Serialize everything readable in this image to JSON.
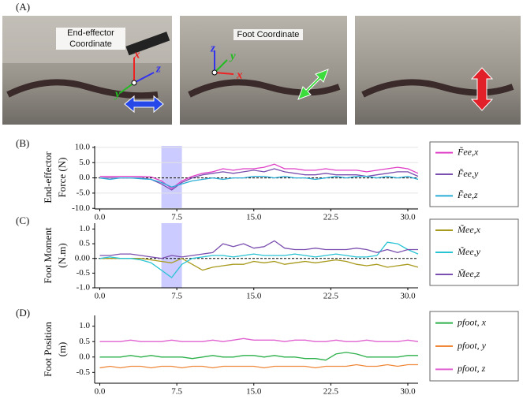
{
  "figure": {
    "label": "(A)",
    "photos": [
      {
        "caption": [
          "End-effector",
          "Coordinate"
        ],
        "axes": [
          "x",
          "z",
          "y"
        ]
      },
      {
        "caption": [
          "Foot Coordinate"
        ],
        "axes": [
          "z",
          "y",
          "x"
        ]
      },
      {
        "caption": [],
        "axes": []
      }
    ]
  },
  "chart_data": [
    {
      "type": "line",
      "panel": "(B)",
      "ylabel": [
        "End-effector",
        "Force (N)"
      ],
      "x": [
        0,
        1,
        2,
        3,
        4,
        5,
        6,
        7,
        8,
        9,
        10,
        11,
        12,
        13,
        14,
        15,
        16,
        17,
        18,
        19,
        20,
        21,
        22,
        23,
        24,
        25,
        26,
        27,
        28,
        29,
        30,
        31
      ],
      "series": [
        {
          "name": "F̃ee,x",
          "color": "#e040c8",
          "values": [
            0.5,
            0.5,
            0.5,
            0.5,
            0.5,
            0.3,
            -1,
            -3.5,
            -1,
            0.5,
            1.5,
            2,
            3,
            2.5,
            3,
            3,
            3.5,
            4.5,
            3,
            3,
            2.5,
            2.5,
            3,
            2.5,
            2.5,
            2.5,
            2,
            2.5,
            3,
            3.5,
            3,
            1.5
          ]
        },
        {
          "name": "F̃ee,y",
          "color": "#7b4fb0",
          "values": [
            0,
            0,
            0,
            0,
            0,
            -0.5,
            -2,
            -4,
            -1.5,
            0,
            1,
            1.5,
            2,
            1.5,
            2,
            2.5,
            2,
            3,
            2,
            1.5,
            1,
            1,
            1.5,
            1,
            1,
            1,
            0.5,
            1,
            1.5,
            2,
            2,
            0.5
          ]
        },
        {
          "name": "F̃ee,z",
          "color": "#2aaed8",
          "values": [
            0,
            -0.5,
            0,
            0,
            -0.3,
            -0.5,
            -1.5,
            -3,
            -2,
            -1,
            -0.5,
            0,
            -0.5,
            0,
            0,
            0.5,
            0.5,
            0,
            0.5,
            0,
            0,
            -0.5,
            0,
            0.5,
            0,
            0.5,
            0.5,
            0,
            0.5,
            0,
            0.5,
            -0.5
          ]
        }
      ],
      "xlim": [
        -0.5,
        31
      ],
      "xticks": [
        {
          "value": 0,
          "label": "0.0"
        },
        7.5,
        {
          "value": 15,
          "label": "15.0"
        },
        22.5,
        {
          "value": 30,
          "label": "30.0"
        }
      ],
      "ylim": [
        -10.2,
        10.5
      ],
      "yticks": [
        {
          "value": -10,
          "label": "-10.0"
        },
        {
          "value": -5,
          "label": "-5.0"
        },
        {
          "value": 0,
          "label": "0.0"
        },
        {
          "value": 5,
          "label": "5.0"
        },
        {
          "value": 10,
          "label": "10.0"
        }
      ],
      "grid": true,
      "zero_line": true,
      "shade_x": [
        6,
        8
      ]
    },
    {
      "type": "line",
      "panel": "(C)",
      "ylabel": [
        "Foot Moment",
        "(N.m)"
      ],
      "x": [
        0,
        1,
        2,
        3,
        4,
        5,
        6,
        7,
        8,
        9,
        10,
        11,
        12,
        13,
        14,
        15,
        16,
        17,
        18,
        19,
        20,
        21,
        22,
        23,
        24,
        25,
        26,
        27,
        28,
        29,
        30,
        31
      ],
      "series": [
        {
          "name": "M̃ee,x",
          "color": "#a89a1c",
          "values": [
            0,
            0,
            0,
            0,
            0,
            -0.05,
            -0.1,
            -0.15,
            0,
            -0.2,
            -0.4,
            -0.3,
            -0.25,
            -0.2,
            -0.2,
            -0.1,
            -0.15,
            -0.1,
            -0.2,
            -0.15,
            -0.1,
            -0.15,
            -0.1,
            -0.05,
            -0.1,
            -0.2,
            -0.25,
            -0.2,
            -0.3,
            -0.25,
            -0.2,
            -0.3
          ]
        },
        {
          "name": "M̃ee,y",
          "color": "#28c4d4",
          "values": [
            0,
            0.05,
            0,
            0,
            -0.05,
            -0.15,
            -0.4,
            -0.65,
            -0.2,
            0,
            0.05,
            0.1,
            0.1,
            0.05,
            0.1,
            0.15,
            0.1,
            0.1,
            0.1,
            0.15,
            0.1,
            0.05,
            0.1,
            0.15,
            0.1,
            0.05,
            0.05,
            0.1,
            0.55,
            0.5,
            0.3,
            0.15
          ]
        },
        {
          "name": "M̃ee,z",
          "color": "#7b4fb0",
          "values": [
            0.1,
            0.1,
            0.15,
            0.15,
            0.1,
            0.05,
            0,
            0.1,
            0.05,
            0.1,
            0.15,
            0.2,
            0.5,
            0.4,
            0.5,
            0.35,
            0.4,
            0.6,
            0.35,
            0.3,
            0.3,
            0.35,
            0.3,
            0.3,
            0.3,
            0.35,
            0.3,
            0.2,
            0.3,
            0.2,
            0.3,
            0.3
          ]
        }
      ],
      "xlim": [
        -0.5,
        31
      ],
      "xticks": [
        {
          "value": 0,
          "label": "0.0"
        },
        7.5,
        {
          "value": 15,
          "label": "15.0"
        },
        22.5,
        {
          "value": 30,
          "label": "30.0"
        }
      ],
      "ylim": [
        -1.0,
        1.2
      ],
      "yticks": [
        {
          "value": -1,
          "label": "-1.0"
        },
        -0.5,
        {
          "value": 0,
          "label": "0.00"
        },
        0.5,
        {
          "value": 1,
          "label": "1.0"
        }
      ],
      "grid": false,
      "zero_line": true,
      "shade_x": [
        6,
        8
      ]
    },
    {
      "type": "line",
      "panel": "(D)",
      "ylabel": [
        "Foot Position",
        "(m)"
      ],
      "x": [
        0,
        1,
        2,
        3,
        4,
        5,
        6,
        7,
        8,
        9,
        10,
        11,
        12,
        13,
        14,
        15,
        16,
        17,
        18,
        19,
        20,
        21,
        22,
        23,
        24,
        25,
        26,
        27,
        28,
        29,
        30,
        31
      ],
      "series": [
        {
          "name": "pfoot, x",
          "color": "#2cb04a",
          "values": [
            0,
            0,
            0,
            0.05,
            0,
            0.05,
            0,
            0,
            0,
            -0.05,
            0,
            0.05,
            0,
            0,
            0.05,
            0.05,
            0,
            0.05,
            0,
            0,
            -0.05,
            -0.05,
            -0.1,
            0.1,
            0.15,
            0.1,
            0,
            0,
            0,
            0,
            0.05,
            0.05
          ]
        },
        {
          "name": "pfoot, y",
          "color": "#f0883a",
          "values": [
            -0.35,
            -0.3,
            -0.35,
            -0.3,
            -0.3,
            -0.35,
            -0.3,
            -0.3,
            -0.35,
            -0.3,
            -0.3,
            -0.35,
            -0.3,
            -0.3,
            -0.3,
            -0.3,
            -0.35,
            -0.3,
            -0.3,
            -0.3,
            -0.3,
            -0.35,
            -0.3,
            -0.3,
            -0.3,
            -0.25,
            -0.3,
            -0.3,
            -0.25,
            -0.3,
            -0.25,
            -0.25
          ]
        },
        {
          "name": "pfoot, z",
          "color": "#e060d0",
          "values": [
            0.5,
            0.5,
            0.5,
            0.55,
            0.5,
            0.5,
            0.5,
            0.55,
            0.5,
            0.5,
            0.5,
            0.55,
            0.5,
            0.55,
            0.6,
            0.55,
            0.55,
            0.55,
            0.5,
            0.55,
            0.55,
            0.5,
            0.5,
            0.55,
            0.5,
            0.5,
            0.55,
            0.5,
            0.5,
            0.5,
            0.55,
            0.5
          ]
        }
      ],
      "xlim": [
        -0.5,
        31
      ],
      "xticks": [
        {
          "value": 0,
          "label": "0.0"
        },
        7.5,
        {
          "value": 15,
          "label": "15.0"
        },
        22.5,
        {
          "value": 30,
          "label": "30.0"
        }
      ],
      "ylim": [
        -0.85,
        1.35
      ],
      "yticks": [
        -0.5,
        {
          "value": 0,
          "label": "0.0"
        },
        0.5,
        {
          "value": 1,
          "label": "1.0"
        }
      ],
      "grid": false,
      "zero_line": false
    }
  ]
}
